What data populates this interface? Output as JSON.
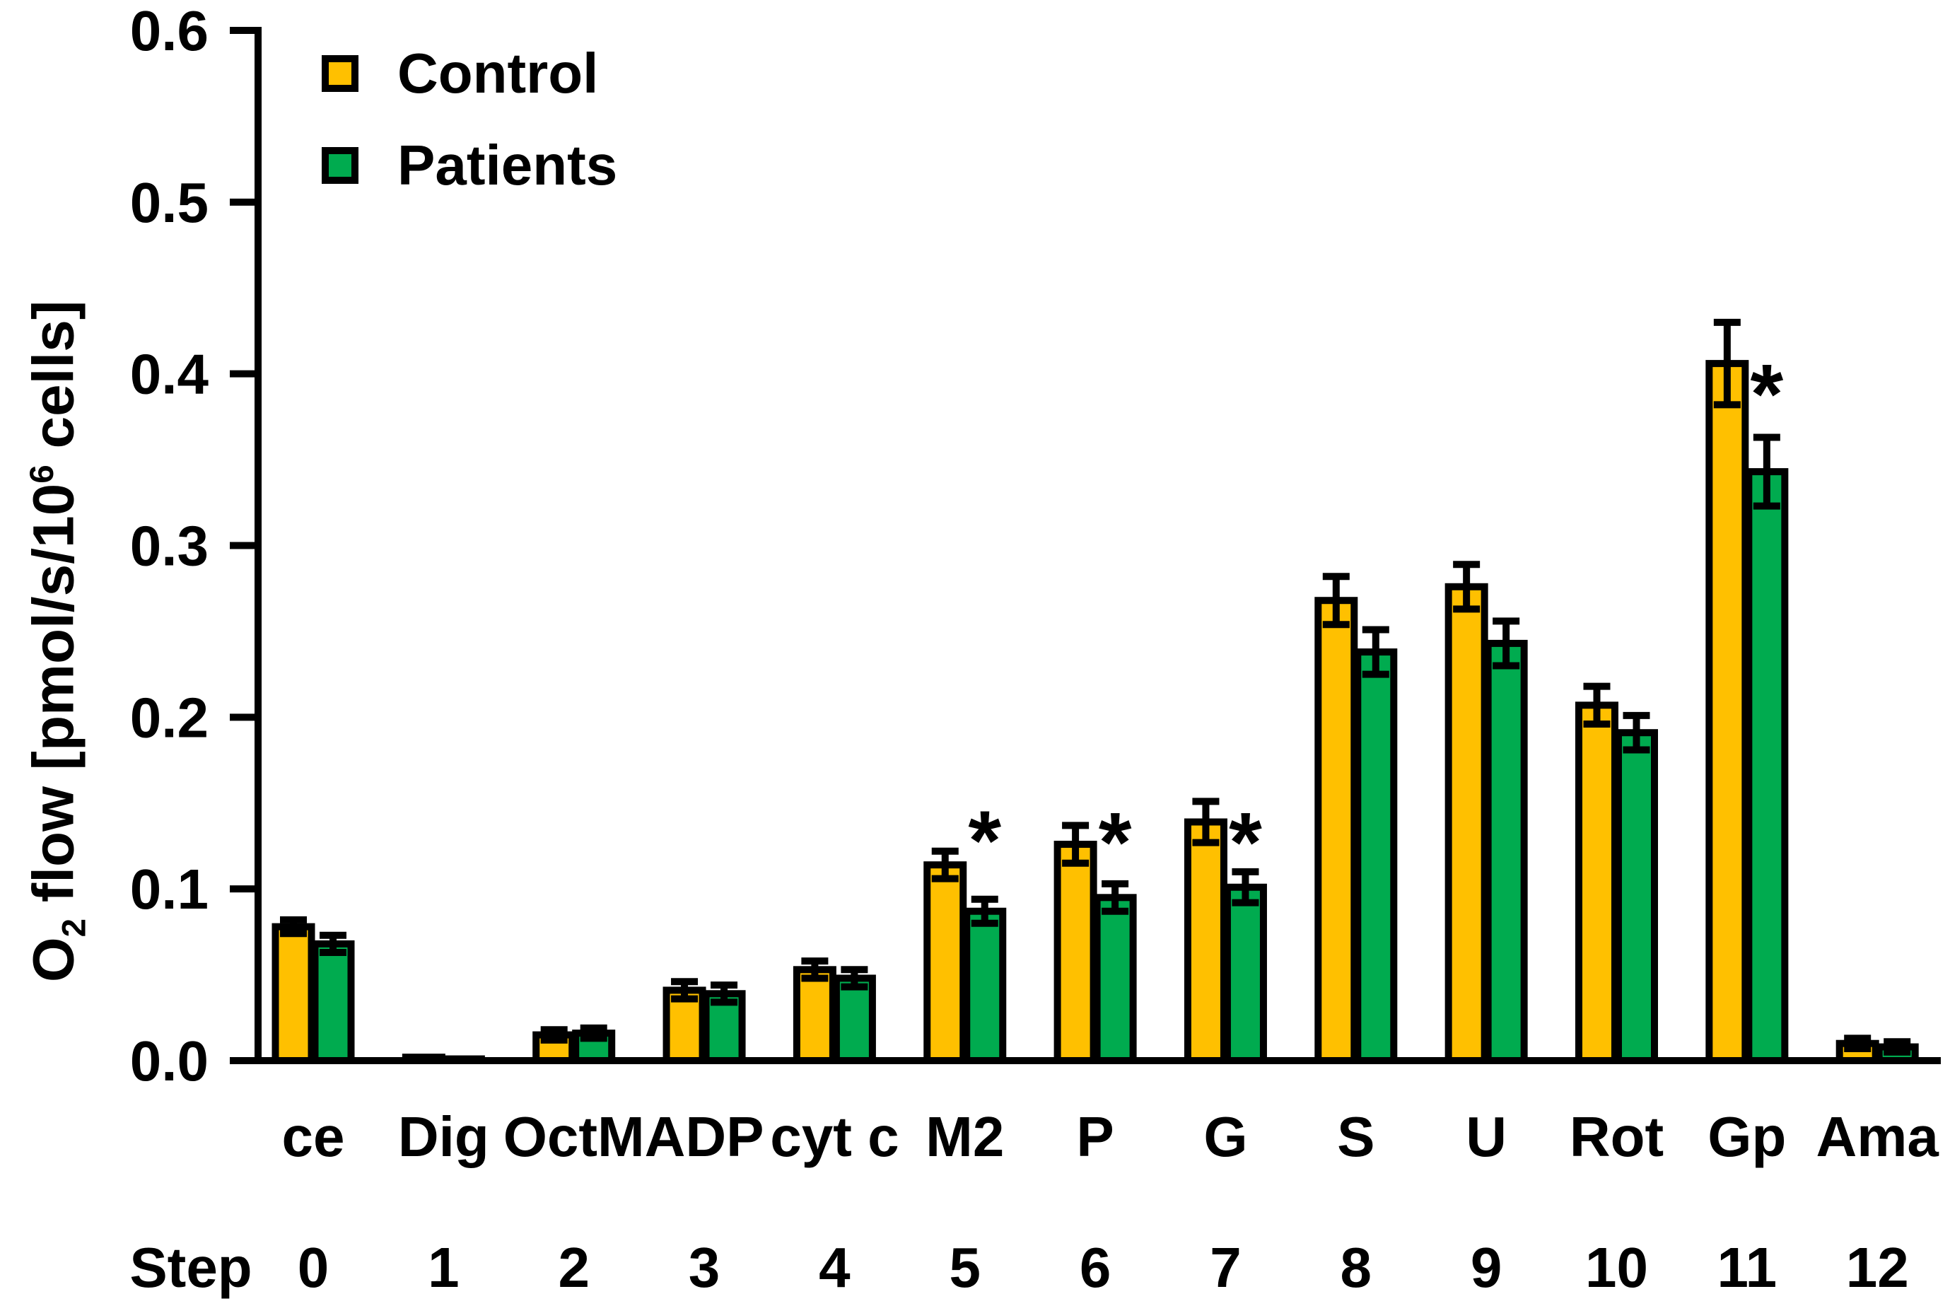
{
  "figure": {
    "background": "#ffffff",
    "axis_color": "#000000",
    "step_row_label": "Step"
  },
  "y_axis_title": {
    "main1": "O",
    "sub": "2",
    "main2": " flow [pmol/s/10",
    "sup": "6",
    "main3": " cells]"
  },
  "chart_data": {
    "type": "bar",
    "title": "",
    "xlabel": "",
    "ylabel": "O2 flow [pmol/s/10^6 cells]",
    "ylim": [
      0.0,
      0.6
    ],
    "ytick_labels": [
      "0.0",
      "0.1",
      "0.2",
      "0.3",
      "0.4",
      "0.5",
      "0.6"
    ],
    "ytick_values": [
      0.0,
      0.1,
      0.2,
      0.3,
      0.4,
      0.5,
      0.6
    ],
    "grid": false,
    "legend_position": "top-left-inside",
    "categories": [
      "ce",
      "Dig",
      "OctM",
      "ADP",
      "cyt c",
      "M2",
      "P",
      "G",
      "S",
      "U",
      "Rot",
      "Gp",
      "Ama"
    ],
    "steps": [
      "0",
      "1",
      "2",
      "3",
      "4",
      "5",
      "6",
      "7",
      "8",
      "9",
      "10",
      "11",
      "12"
    ],
    "series": [
      {
        "name": "Control",
        "color": "#FFC000",
        "values": [
          0.078,
          0.002,
          0.015,
          0.041,
          0.053,
          0.114,
          0.126,
          0.139,
          0.268,
          0.276,
          0.207,
          0.406,
          0.01
        ],
        "errors": [
          0.004,
          0.0,
          0.003,
          0.005,
          0.005,
          0.008,
          0.011,
          0.012,
          0.014,
          0.013,
          0.011,
          0.024,
          0.003
        ]
      },
      {
        "name": "Patients",
        "color": "#00AB4F",
        "values": [
          0.068,
          0.001,
          0.016,
          0.039,
          0.048,
          0.087,
          0.095,
          0.101,
          0.238,
          0.243,
          0.191,
          0.343,
          0.008
        ],
        "errors": [
          0.005,
          0.0,
          0.003,
          0.005,
          0.005,
          0.007,
          0.008,
          0.009,
          0.013,
          0.013,
          0.01,
          0.02,
          0.003
        ]
      }
    ],
    "significance_marker": "*",
    "significance": [
      {
        "category": "M2",
        "index": 5,
        "marker_y_value": 0.131
      },
      {
        "category": "P",
        "index": 6,
        "marker_y_value": 0.13
      },
      {
        "category": "G",
        "index": 7,
        "marker_y_value": 0.13
      },
      {
        "category": "Gp",
        "index": 11,
        "marker_y_value": 0.391
      }
    ]
  }
}
